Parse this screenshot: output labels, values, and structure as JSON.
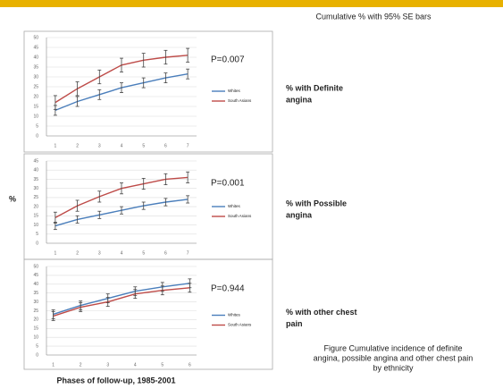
{
  "header": "Cumulative % with 95% SE bars",
  "y_label": "%",
  "x_label": "Phases of follow-up, 1985-2001",
  "caption": [
    "Figure Cumulative incidence of definite",
    "angina, possible angina and other chest pain",
    "by ethnicity"
  ],
  "chart_data": [
    {
      "type": "line",
      "annotation": "P=0.007",
      "label": [
        "% with Definite",
        "angina"
      ],
      "x": [
        1,
        2,
        3,
        4,
        5,
        6,
        7
      ],
      "xlim": [
        0.6,
        7.4
      ],
      "ylim": [
        0,
        50
      ],
      "yticks": [
        0,
        5,
        10,
        15,
        20,
        25,
        30,
        35,
        40,
        45,
        50
      ],
      "grid": true,
      "series": [
        {
          "name": "Whites",
          "color": "#4a7ebb",
          "values": [
            13,
            17.5,
            21,
            24.5,
            27,
            29.5,
            31.5
          ],
          "errors": [
            2.5,
            2.5,
            2.5,
            2.5,
            2.5,
            2.5,
            2.5
          ]
        },
        {
          "name": "South Asians",
          "color": "#be4b48",
          "values": [
            17,
            24,
            30,
            36,
            38.5,
            40,
            41
          ],
          "errors": [
            3.5,
            3.5,
            3.5,
            3.5,
            3.5,
            3.5,
            3.5
          ]
        }
      ]
    },
    {
      "type": "line",
      "annotation": "P=0.001",
      "label": [
        "% with Possible",
        "angina"
      ],
      "x": [
        1,
        2,
        3,
        4,
        5,
        6,
        7
      ],
      "xlim": [
        0.6,
        7.4
      ],
      "ylim": [
        0,
        45
      ],
      "yticks": [
        0,
        5,
        10,
        15,
        20,
        25,
        30,
        35,
        40,
        45
      ],
      "grid": true,
      "series": [
        {
          "name": "Whites",
          "color": "#4a7ebb",
          "values": [
            9.5,
            13,
            15.5,
            18,
            20.5,
            22.5,
            24
          ],
          "errors": [
            2,
            2,
            2,
            2,
            2,
            2,
            2
          ]
        },
        {
          "name": "South Asians",
          "color": "#be4b48",
          "values": [
            14,
            20.5,
            25.5,
            30,
            32.5,
            35,
            36
          ],
          "errors": [
            3,
            3,
            3,
            3,
            3,
            3,
            3
          ]
        }
      ]
    },
    {
      "type": "line",
      "annotation": "P=0.944",
      "label": [
        "% with other chest",
        "pain"
      ],
      "x": [
        1,
        2,
        3,
        4,
        5,
        6
      ],
      "xlim": [
        0.75,
        6.25
      ],
      "ylim": [
        0,
        50
      ],
      "yticks": [
        0,
        5,
        10,
        15,
        20,
        25,
        30,
        35,
        40,
        45,
        50
      ],
      "grid": true,
      "series": [
        {
          "name": "Whites",
          "color": "#4a7ebb",
          "values": [
            23,
            28,
            32,
            36,
            38.5,
            40.5
          ],
          "errors": [
            2.5,
            2.5,
            2.5,
            2.5,
            2.5,
            2.5
          ]
        },
        {
          "name": "South Asians",
          "color": "#be4b48",
          "values": [
            22,
            27,
            30,
            34.5,
            36.5,
            38
          ],
          "errors": [
            2.5,
            2.5,
            2.5,
            2.5,
            2.5,
            2.5
          ]
        }
      ]
    }
  ]
}
